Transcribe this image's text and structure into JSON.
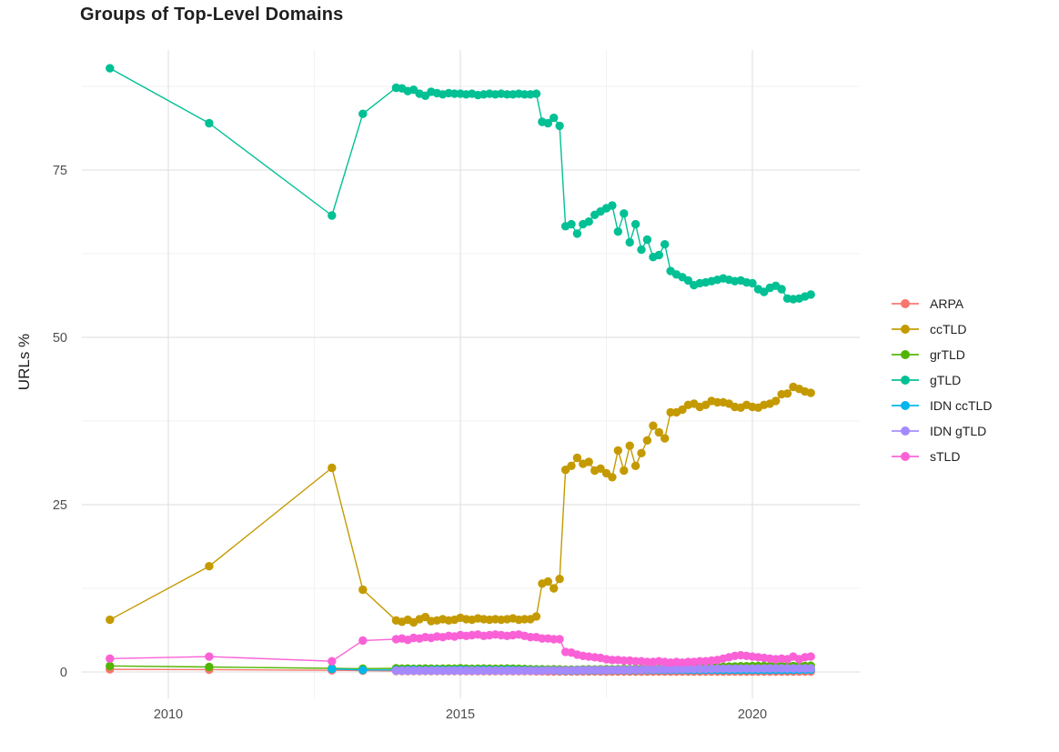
{
  "page": {
    "background": "#FFFFFF"
  },
  "colors": {
    "grid_major": "#E3E3E3",
    "grid_minor": "#F2F2F2",
    "tick_text": "#4D4D4D",
    "text": "#1F1F1F"
  },
  "chart_data": {
    "type": "line",
    "title": "Groups of Top-Level Domains",
    "xlabel": "",
    "ylabel": "URLs %",
    "grid": true,
    "legend_position": "right",
    "x_axis": {
      "ticks": [
        2010,
        2015,
        2020
      ],
      "tick_labels": [
        "2010",
        "2015",
        "2020"
      ],
      "minor_ticks": [
        2012.5,
        2017.5
      ],
      "range": [
        2008.6,
        2021.8
      ]
    },
    "y_axis": {
      "ticks": [
        0,
        25,
        50,
        75
      ],
      "tick_labels": [
        "0",
        "25",
        "50",
        "75"
      ],
      "minor_ticks": [
        12.5,
        37.5,
        62.5,
        87.5
      ],
      "range": [
        -4,
        93
      ]
    },
    "x_dense": [
      2013.9,
      2014.0,
      2014.1,
      2014.2,
      2014.3,
      2014.4,
      2014.5,
      2014.6,
      2014.7,
      2014.8,
      2014.9,
      2015.0,
      2015.1,
      2015.2,
      2015.3,
      2015.4,
      2015.5,
      2015.6,
      2015.7,
      2015.8,
      2015.9,
      2016.0,
      2016.1,
      2016.2,
      2016.3,
      2016.4,
      2016.5,
      2016.6,
      2016.7,
      2016.8,
      2016.9,
      2017.0,
      2017.1,
      2017.2,
      2017.3,
      2017.4,
      2017.5,
      2017.6,
      2017.7,
      2017.8,
      2017.9,
      2018.0,
      2018.1,
      2018.2,
      2018.3,
      2018.4,
      2018.5,
      2018.6,
      2018.7,
      2018.8,
      2018.9,
      2019.0,
      2019.1,
      2019.2,
      2019.3,
      2019.4,
      2019.5,
      2019.6,
      2019.7,
      2019.8,
      2019.9,
      2020.0,
      2020.1,
      2020.2,
      2020.3,
      2020.4,
      2020.5,
      2020.6,
      2020.7,
      2020.8,
      2020.9,
      2021.0
    ],
    "series": [
      {
        "name": "ARPA",
        "color": "#F8766D",
        "x_sparse": [
          2009.0,
          2010.7,
          2012.8,
          2013.33
        ],
        "y_sparse": [
          0.4,
          0.35,
          0.25,
          0.2
        ],
        "y_dense": [
          0.15,
          0.15,
          0.15,
          0.15,
          0.15,
          0.15,
          0.15,
          0.15,
          0.15,
          0.15,
          0.15,
          0.15,
          0.12,
          0.12,
          0.12,
          0.12,
          0.12,
          0.12,
          0.12,
          0.12,
          0.12,
          0.12,
          0.12,
          0.12,
          0.1,
          0.1,
          0.08,
          0.08,
          0.08,
          0.08,
          0.08,
          0.08,
          0.08,
          0.08,
          0.08,
          0.08,
          0.07,
          0.07,
          0.07,
          0.07,
          0.07,
          0.07,
          0.07,
          0.07,
          0.07,
          0.07,
          0.07,
          0.07,
          0.06,
          0.06,
          0.06,
          0.06,
          0.06,
          0.06,
          0.06,
          0.06,
          0.06,
          0.06,
          0.06,
          0.06,
          0.05,
          0.05,
          0.05,
          0.05,
          0.05,
          0.05,
          0.05,
          0.05,
          0.05,
          0.05,
          0.05,
          0.05
        ]
      },
      {
        "name": "ccTLD",
        "color": "#C49A00",
        "x_sparse": [
          2009.0,
          2010.7,
          2012.8,
          2013.33
        ],
        "y_sparse": [
          7.8,
          15.8,
          30.5,
          12.3
        ],
        "y_dense": [
          7.7,
          7.5,
          7.8,
          7.4,
          7.9,
          8.2,
          7.6,
          7.7,
          7.9,
          7.7,
          7.8,
          8.1,
          7.9,
          7.8,
          8.0,
          7.9,
          7.8,
          7.9,
          7.8,
          7.9,
          8.0,
          7.8,
          7.9,
          7.9,
          8.3,
          13.2,
          13.5,
          12.5,
          13.9,
          30.2,
          30.8,
          32.0,
          31.1,
          31.4,
          30.1,
          30.4,
          29.7,
          29.1,
          33.1,
          30.1,
          33.8,
          30.8,
          32.7,
          34.6,
          36.8,
          35.8,
          34.9,
          38.8,
          38.8,
          39.2,
          39.9,
          40.1,
          39.6,
          39.9,
          40.5,
          40.3,
          40.3,
          40.1,
          39.6,
          39.5,
          39.9,
          39.6,
          39.5,
          39.9,
          40.1,
          40.5,
          41.5,
          41.6,
          42.6,
          42.3,
          41.9,
          41.7
        ]
      },
      {
        "name": "grTLD",
        "color": "#53B400",
        "x_sparse": [
          2009.0,
          2010.7,
          2012.8,
          2013.33
        ],
        "y_sparse": [
          0.9,
          0.75,
          0.55,
          0.5
        ],
        "y_dense": [
          0.55,
          0.5,
          0.52,
          0.48,
          0.5,
          0.52,
          0.5,
          0.48,
          0.5,
          0.52,
          0.5,
          0.55,
          0.5,
          0.48,
          0.5,
          0.52,
          0.5,
          0.48,
          0.5,
          0.52,
          0.5,
          0.48,
          0.45,
          0.42,
          0.4,
          0.4,
          0.38,
          0.4,
          0.38,
          0.35,
          0.35,
          0.36,
          0.38,
          0.4,
          0.38,
          0.4,
          0.42,
          0.4,
          0.42,
          0.45,
          0.44,
          0.46,
          0.48,
          0.5,
          0.48,
          0.5,
          0.52,
          0.55,
          0.58,
          0.6,
          0.62,
          0.65,
          0.68,
          0.7,
          0.72,
          0.75,
          0.78,
          0.8,
          0.82,
          0.85,
          0.85,
          0.88,
          0.9,
          0.88,
          0.9,
          0.92,
          0.9,
          0.88,
          0.9,
          0.92,
          0.9,
          0.92
        ]
      },
      {
        "name": "gTLD",
        "color": "#00C094",
        "x_sparse": [
          2009.0,
          2010.7,
          2012.8,
          2013.33
        ],
        "y_sparse": [
          90.2,
          82.0,
          68.2,
          83.4
        ],
        "y_dense": [
          87.3,
          87.2,
          86.8,
          87.0,
          86.4,
          86.1,
          86.7,
          86.5,
          86.3,
          86.5,
          86.4,
          86.4,
          86.3,
          86.4,
          86.2,
          86.3,
          86.4,
          86.3,
          86.4,
          86.3,
          86.3,
          86.4,
          86.3,
          86.3,
          86.4,
          82.2,
          82.0,
          82.8,
          81.6,
          66.6,
          66.9,
          65.5,
          66.9,
          67.3,
          68.3,
          68.8,
          69.3,
          69.7,
          65.8,
          68.5,
          64.2,
          66.9,
          63.1,
          64.6,
          62.0,
          62.3,
          63.9,
          59.9,
          59.4,
          59.0,
          58.5,
          57.8,
          58.1,
          58.2,
          58.4,
          58.6,
          58.8,
          58.6,
          58.4,
          58.5,
          58.2,
          58.1,
          57.2,
          56.8,
          57.4,
          57.7,
          57.2,
          55.8,
          55.7,
          55.8,
          56.1,
          56.4
        ]
      },
      {
        "name": "IDN ccTLD",
        "color": "#00B6EB",
        "x_sparse": [
          2012.8,
          2013.33
        ],
        "y_sparse": [
          0.45,
          0.3
        ],
        "y_dense": [
          0.3,
          0.28,
          0.3,
          0.32,
          0.3,
          0.28,
          0.3,
          0.32,
          0.3,
          0.28,
          0.3,
          0.32,
          0.3,
          0.28,
          0.3,
          0.32,
          0.3,
          0.28,
          0.3,
          0.32,
          0.3,
          0.28,
          0.28,
          0.26,
          0.25,
          0.25,
          0.24,
          0.24,
          0.22,
          0.22,
          0.22,
          0.23,
          0.24,
          0.25,
          0.25,
          0.26,
          0.26,
          0.27,
          0.28,
          0.28,
          0.28,
          0.29,
          0.3,
          0.3,
          0.3,
          0.3,
          0.3,
          0.3,
          0.3,
          0.3,
          0.3,
          0.3,
          0.3,
          0.3,
          0.3,
          0.3,
          0.3,
          0.3,
          0.3,
          0.3,
          0.3,
          0.3,
          0.3,
          0.3,
          0.3,
          0.3,
          0.3,
          0.3,
          0.3,
          0.32,
          0.32,
          0.32
        ]
      },
      {
        "name": "IDN gTLD",
        "color": "#A58AFF",
        "x_sparse": [],
        "y_sparse": [],
        "y_dense": [
          0.2,
          0.2,
          0.2,
          0.2,
          0.2,
          0.2,
          0.2,
          0.2,
          0.2,
          0.2,
          0.2,
          0.2,
          0.2,
          0.2,
          0.2,
          0.2,
          0.2,
          0.2,
          0.2,
          0.2,
          0.2,
          0.22,
          0.22,
          0.22,
          0.22,
          0.22,
          0.25,
          0.25,
          0.25,
          0.25,
          0.25,
          0.28,
          0.28,
          0.3,
          0.3,
          0.3,
          0.3,
          0.3,
          0.32,
          0.32,
          0.35,
          0.35,
          0.35,
          0.38,
          0.38,
          0.4,
          0.4,
          0.4,
          0.42,
          0.42,
          0.45,
          0.45,
          0.45,
          0.48,
          0.48,
          0.5,
          0.5,
          0.5,
          0.5,
          0.52,
          0.52,
          0.52,
          0.52,
          0.55,
          0.55,
          0.55,
          0.55,
          0.55,
          0.55,
          0.55,
          0.55,
          0.55
        ]
      },
      {
        "name": "sTLD",
        "color": "#FB61D7",
        "x_sparse": [
          2009.0,
          2010.7,
          2012.8,
          2013.33
        ],
        "y_sparse": [
          2.0,
          2.3,
          1.6,
          4.7
        ],
        "y_dense": [
          4.9,
          5.0,
          4.8,
          5.1,
          5.0,
          5.2,
          5.1,
          5.3,
          5.2,
          5.4,
          5.3,
          5.5,
          5.4,
          5.5,
          5.6,
          5.4,
          5.5,
          5.6,
          5.5,
          5.4,
          5.5,
          5.6,
          5.4,
          5.2,
          5.2,
          5.0,
          5.0,
          4.9,
          4.9,
          3.0,
          2.9,
          2.6,
          2.4,
          2.3,
          2.2,
          2.1,
          1.9,
          1.8,
          1.8,
          1.7,
          1.7,
          1.6,
          1.6,
          1.5,
          1.5,
          1.6,
          1.5,
          1.4,
          1.5,
          1.4,
          1.5,
          1.5,
          1.6,
          1.6,
          1.7,
          1.8,
          2.0,
          2.2,
          2.4,
          2.5,
          2.4,
          2.3,
          2.2,
          2.1,
          2.0,
          1.9,
          2.0,
          1.9,
          2.3,
          1.9,
          2.2,
          2.3
        ]
      }
    ]
  }
}
